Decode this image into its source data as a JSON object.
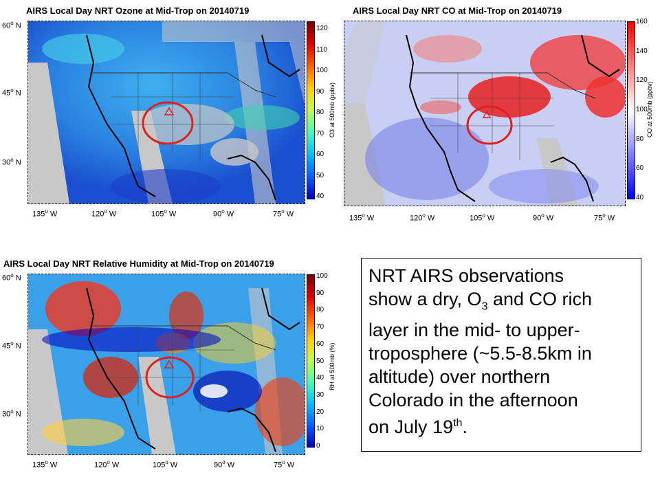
{
  "panels": [
    {
      "id": "ozone",
      "title": "AIRS Local Day NRT Ozone at Mid-Trop on 20140719",
      "colorbar_label": "O3 at 500mb (ppbv)",
      "colorbar_ticks": [
        "120",
        "110",
        "100",
        "90",
        "80",
        "70",
        "60",
        "50",
        "40"
      ],
      "lat_labels": [
        "60",
        "45",
        "30"
      ],
      "lon_labels": [
        "135",
        "120",
        "105",
        "90",
        "75"
      ]
    },
    {
      "id": "co",
      "title": "AIRS Local Day NRT CO at Mid-Trop on 20140719",
      "colorbar_label": "CO at 500mb (ppbv)",
      "colorbar_ticks": [
        "160",
        "140",
        "120",
        "100",
        "80",
        "60",
        "40"
      ],
      "lon_labels": [
        "135",
        "120",
        "105",
        "90",
        "75"
      ]
    },
    {
      "id": "rh",
      "title": "AIRS Local Day NRT Relative Humidity at Mid-Trop on 20140719",
      "colorbar_label": "RH at 500mb (%)",
      "colorbar_ticks": [
        "100",
        "90",
        "80",
        "70",
        "60",
        "50",
        "40",
        "30",
        "20",
        "10",
        "0"
      ],
      "lat_labels": [
        "60",
        "45",
        "30"
      ],
      "lon_labels": [
        "135",
        "120",
        "105",
        "90",
        "75"
      ]
    }
  ],
  "lat_suffix": "N",
  "lon_suffix": "W",
  "degree_symbol": "o",
  "note": {
    "line1": "NRT AIRS observations",
    "line2a": "show a dry, O",
    "line2sub": "3",
    "line2b": " and CO rich",
    "line3": "layer in the mid- to upper-",
    "line4": "troposphere (~5.5-8.5km in",
    "line5": "altitude) over northern",
    "line6": "Colorado in the afternoon",
    "line7a": "on July 19",
    "line7sup": "th",
    "line7b": "."
  },
  "colors": {
    "ozone_bg": "#2f7fe0",
    "co_bg": "#c9cff2",
    "rh_bg": "#39a0e8",
    "missing": "#c8c8c8",
    "marker": "#e0201e"
  }
}
